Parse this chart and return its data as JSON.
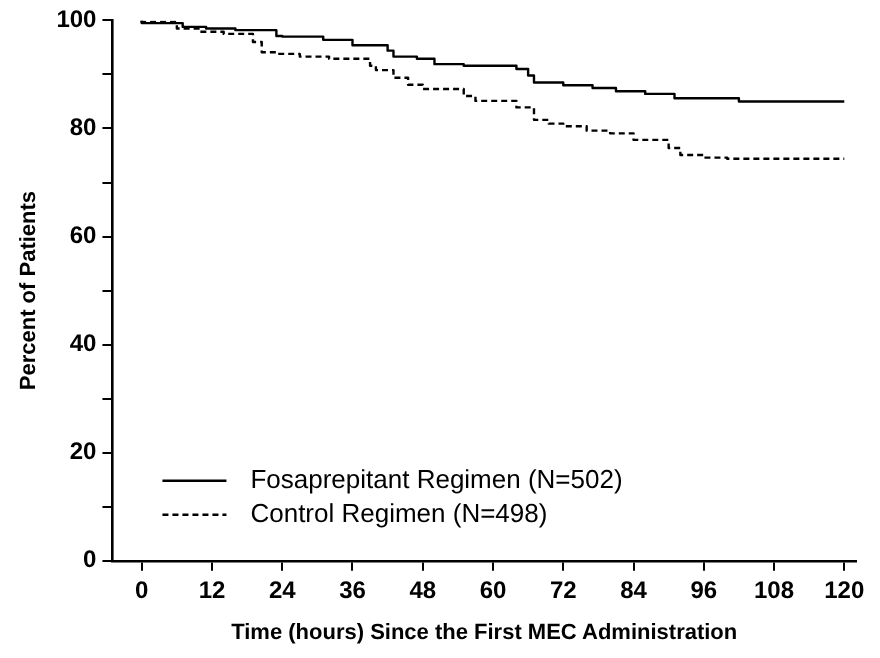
{
  "chart_data": {
    "type": "step",
    "xlabel": "Time (hours) Since the First MEC Administration",
    "ylabel": "Percent of Patients",
    "xlim": [
      -5,
      122
    ],
    "xticks": [
      0,
      12,
      24,
      36,
      48,
      60,
      72,
      84,
      96,
      108,
      120
    ],
    "ylim": [
      0,
      100
    ],
    "yticks": [
      0,
      {
        "value": 10,
        "label": null
      },
      20,
      {
        "value": 30,
        "label": null
      },
      40,
      {
        "value": 50,
        "label": null
      },
      60,
      {
        "value": 70,
        "label": null
      },
      80,
      {
        "value": 90,
        "label": null
      },
      100
    ],
    "grid": false,
    "legend": "bottom left",
    "marker": "none",
    "series": [
      {
        "name": "Fosaprepitant Regimen (N=502)",
        "color": "#000000",
        "line_style": "solid",
        "x": [
          0,
          7,
          11,
          16,
          23,
          24,
          31,
          36,
          42,
          43,
          47,
          50,
          55,
          64,
          66,
          67,
          72,
          77,
          81,
          86,
          91,
          92,
          102,
          107,
          120
        ],
        "values": [
          100,
          99.5,
          98.8,
          98.5,
          98.2,
          97.1,
          97,
          96.4,
          95.4,
          94.4,
          93.3,
          92.9,
          91.9,
          91.6,
          91,
          89.8,
          88.5,
          88,
          87.5,
          86.9,
          86.4,
          85.6,
          85.6,
          85,
          85
        ]
      },
      {
        "name": "Control Regimen (N=498)",
        "color": "#000000",
        "line_style": "dashed",
        "x": [
          0,
          6,
          10,
          14,
          19,
          20.5,
          23,
          27,
          32,
          39,
          40,
          43,
          45.5,
          48,
          55,
          57,
          64,
          67,
          69.5,
          72,
          76,
          80,
          84,
          90,
          92,
          96,
          100,
          106,
          120
        ],
        "values": [
          100,
          99.7,
          98.5,
          97.9,
          97.5,
          96,
          94.1,
          93.8,
          93.3,
          92.9,
          91.6,
          90.8,
          89.4,
          88.1,
          87.3,
          86,
          85.1,
          83.9,
          81.6,
          80.9,
          80.4,
          79.6,
          79.1,
          77.9,
          76.4,
          75.1,
          74.6,
          74.4,
          74.4
        ]
      }
    ]
  }
}
